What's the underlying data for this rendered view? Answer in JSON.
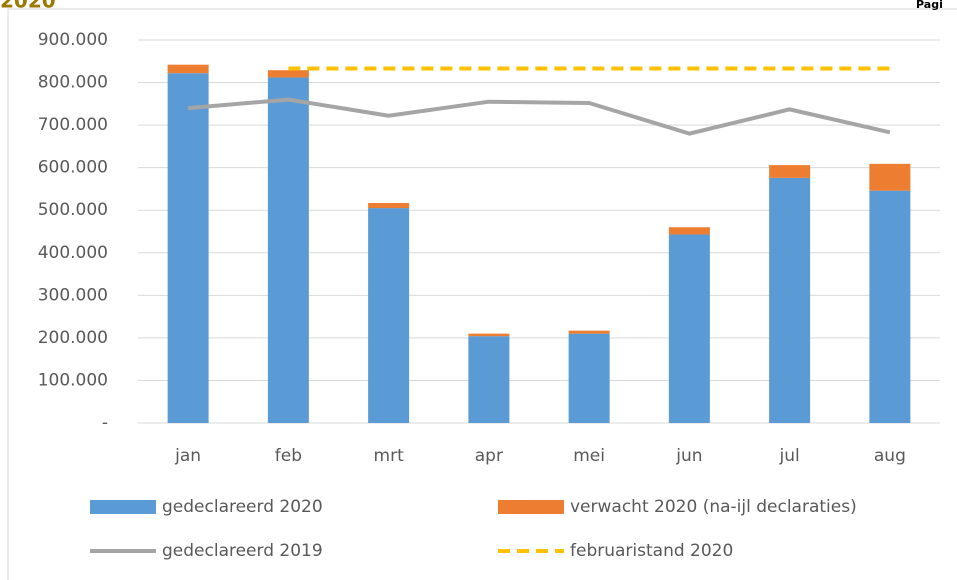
{
  "header": {
    "left": "2020",
    "right": "Pagi"
  },
  "chart_data": {
    "type": "bar",
    "stacked": true,
    "categories": [
      "jan",
      "feb",
      "mrt",
      "apr",
      "mei",
      "jun",
      "jul",
      "aug"
    ],
    "series": [
      {
        "name": "gedeclareerd 2020",
        "type": "bar",
        "color": "#5b9bd5",
        "values": [
          822000,
          812000,
          505000,
          204000,
          210000,
          443000,
          576000,
          546000
        ]
      },
      {
        "name": "verwacht 2020 (na-ijl declaraties)",
        "type": "bar",
        "color": "#ed7d31",
        "values": [
          20000,
          17000,
          12000,
          6000,
          7000,
          17000,
          30000,
          63000
        ]
      },
      {
        "name": "gedeclareerd 2019",
        "type": "line",
        "color": "#a5a5a5",
        "values": [
          740000,
          760000,
          722000,
          755000,
          752000,
          680000,
          737000,
          683000
        ]
      },
      {
        "name": "februaristand 2020",
        "type": "line",
        "dash": true,
        "color": "#ffc000",
        "values": [
          null,
          833000,
          833000,
          833000,
          833000,
          833000,
          833000,
          833000
        ]
      }
    ],
    "ylim": [
      0,
      900000
    ],
    "yticks": [
      {
        "value": 0,
        "label": "-"
      },
      {
        "value": 100000,
        "label": "100.000"
      },
      {
        "value": 200000,
        "label": "200.000"
      },
      {
        "value": 300000,
        "label": "300.000"
      },
      {
        "value": 400000,
        "label": "400.000"
      },
      {
        "value": 500000,
        "label": "500.000"
      },
      {
        "value": 600000,
        "label": "600.000"
      },
      {
        "value": 700000,
        "label": "700.000"
      },
      {
        "value": 800000,
        "label": "800.000"
      },
      {
        "value": 900000,
        "label": "900.000"
      }
    ],
    "grid": true
  }
}
